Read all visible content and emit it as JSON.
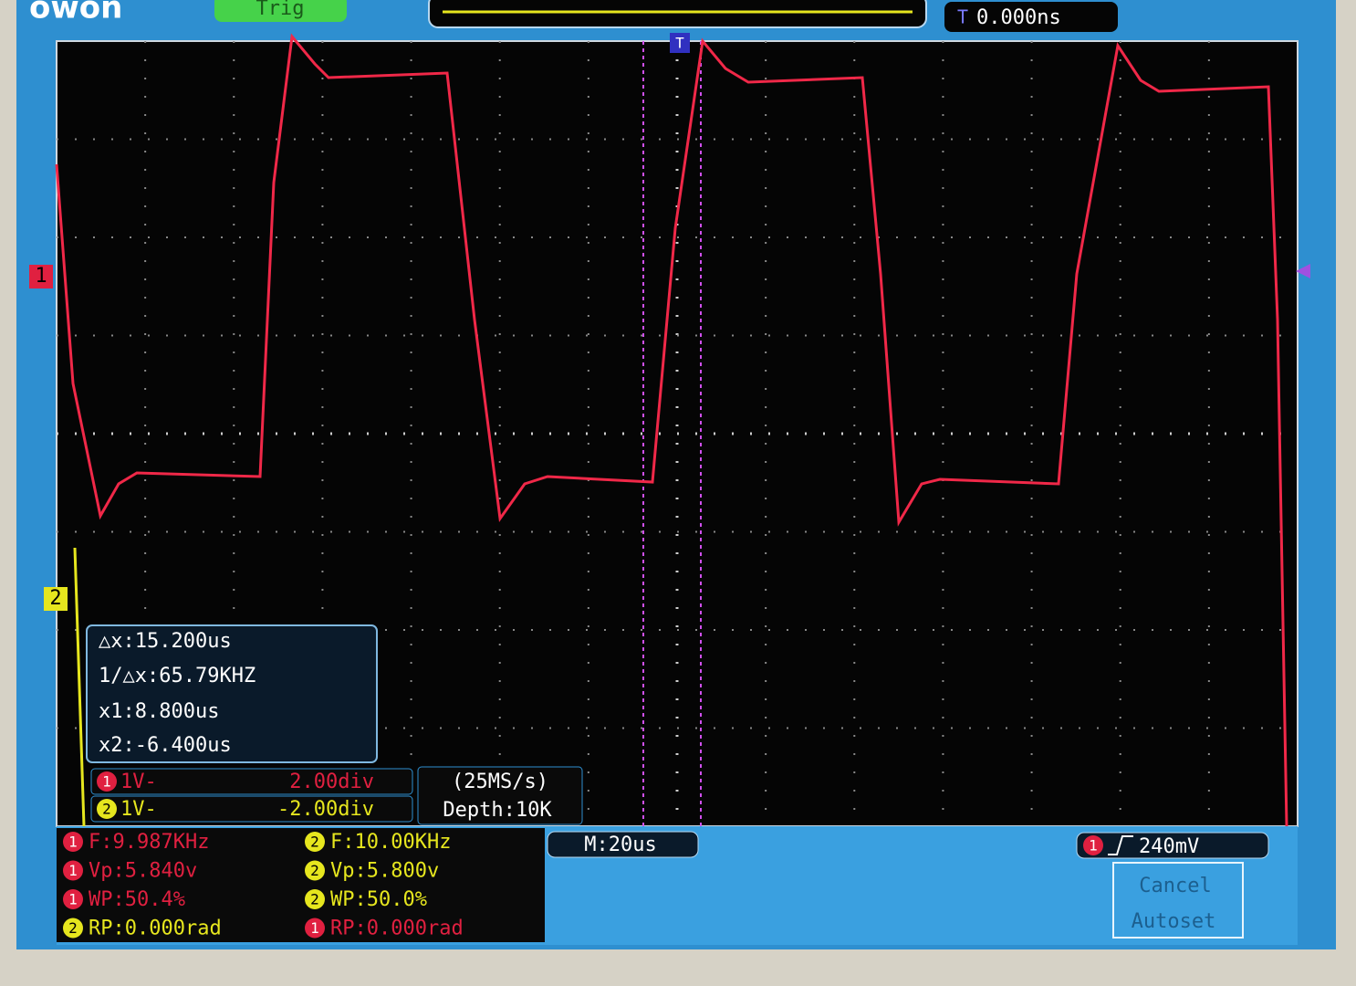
{
  "header": {
    "logo": "owon",
    "trigger_status": "Trig",
    "trigger_offset": "0.000ns"
  },
  "channel_markers": [
    "1",
    "2"
  ],
  "cursor_panel": {
    "delta_x": "△x:15.200us",
    "inverse_delta_x": "1/△x:65.79KHZ",
    "x1": "x1:8.800us",
    "x2": "x2:-6.400us"
  },
  "channels": [
    {
      "id": "1",
      "coupling": "1V-",
      "position": "2.00div"
    },
    {
      "id": "2",
      "coupling": "1V-",
      "position": "-2.00div"
    }
  ],
  "acquisition": {
    "sample_rate": "(25MS/s)",
    "depth": "Depth:10K"
  },
  "timebase": "M:20us",
  "trigger": {
    "source": "1",
    "level": "240mV"
  },
  "measurements": [
    {
      "channel": "1",
      "text": "F:9.987KHz"
    },
    {
      "channel": "2",
      "text": "F:10.00KHz"
    },
    {
      "channel": "1",
      "text": "Vp:5.840v"
    },
    {
      "channel": "2",
      "text": "Vp:5.800v"
    },
    {
      "channel": "1",
      "text": "WP:50.4%"
    },
    {
      "channel": "2",
      "text": "WP:50.0%"
    },
    {
      "channel": "2",
      "text": "RP:0.000rad"
    },
    {
      "channel": "1",
      "text": "RP:0.000rad"
    }
  ],
  "menu": [
    "Cancel",
    "Autoset"
  ]
}
